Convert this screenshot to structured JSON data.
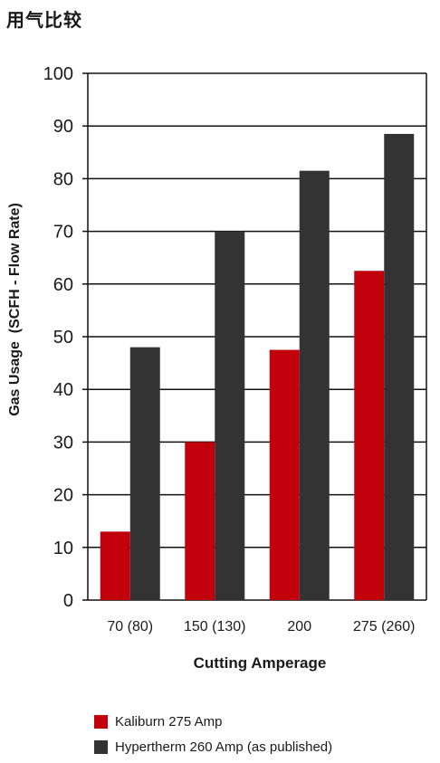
{
  "page_title": "用气比较",
  "colors": {
    "kaliburn": "#c1000b",
    "hypertherm": "#333333",
    "grid": "#111111"
  },
  "chart_data": {
    "type": "bar",
    "categories": [
      "70 (80)",
      "150 (130)",
      "200",
      "275 (260)"
    ],
    "series": [
      {
        "name": "Kaliburn 275 Amp",
        "values": [
          13,
          30,
          47.5,
          62.5
        ]
      },
      {
        "name": "Hypertherm 260 Amp (as published)",
        "values": [
          48,
          70,
          81.5,
          88.5
        ]
      }
    ],
    "xlabel": "Cutting Amperage",
    "ylabel": "Gas Usage  (SCFH - Flow Rate)",
    "ylim": [
      0,
      100
    ],
    "yticks": [
      "0",
      "10",
      "20",
      "30",
      "40",
      "50",
      "60",
      "70",
      "80",
      "90",
      "100"
    ],
    "grid": true,
    "legend_position": "bottom"
  }
}
